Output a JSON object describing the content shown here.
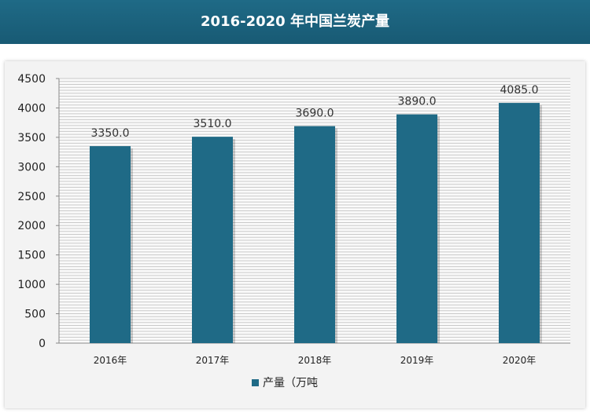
{
  "header": {
    "title": "2016-2020 年中国兰炭产量"
  },
  "chart_data": {
    "type": "bar",
    "title": "2016-2020 年中国兰炭产量",
    "categories": [
      "2016年",
      "2017年",
      "2018年",
      "2019年",
      "2020年"
    ],
    "series": [
      {
        "name": "产量（万吨",
        "values": [
          3350.0,
          3510.0,
          3690.0,
          3890.0,
          4085.0
        ]
      }
    ],
    "data_labels": [
      "3350.0",
      "3510.0",
      "3690.0",
      "3890.0",
      "4085.0"
    ],
    "y_ticks": [
      "0",
      "500",
      "1000",
      "1500",
      "2000",
      "2500",
      "3000",
      "3500",
      "4000",
      "4500"
    ],
    "ylim": [
      0,
      4500
    ],
    "grid": true,
    "legend_position": "bottom",
    "colors": {
      "bar": "#1f6a86",
      "header": "#1f6a86",
      "grid": "#c9c9c9"
    }
  }
}
